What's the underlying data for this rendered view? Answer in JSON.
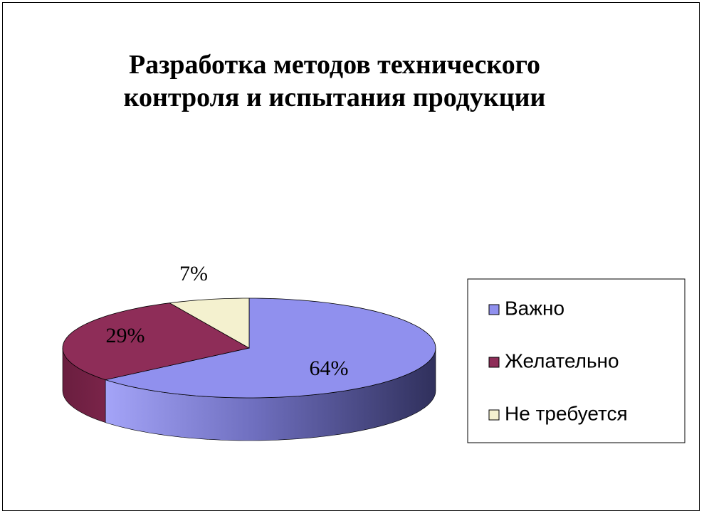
{
  "chart_data": {
    "type": "pie3d",
    "title": "Разработка методов технического контроля и испытания продукции",
    "categories": [
      "Важно",
      "Желательно",
      "Не требуется"
    ],
    "values": [
      64,
      29,
      7
    ],
    "value_labels": [
      "64%",
      "29%",
      "7%"
    ],
    "colors": [
      "#9090ee",
      "#8e2d58",
      "#f4f1cf"
    ],
    "legend": "right"
  }
}
